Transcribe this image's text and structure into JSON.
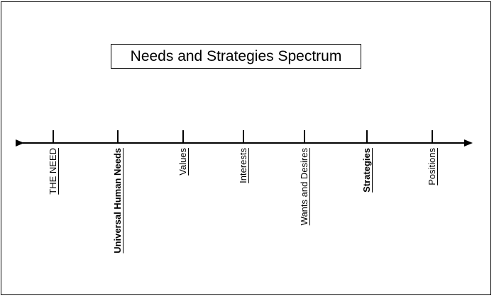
{
  "title": "Needs and Strategies Spectrum",
  "spectrum": {
    "points": [
      {
        "label": "THE NEED",
        "bold": false
      },
      {
        "label": "Universal Human Needs",
        "bold": true
      },
      {
        "label": "Values",
        "bold": false
      },
      {
        "label": "Interests",
        "bold": false
      },
      {
        "label": "Wants and Desires",
        "bold": false
      },
      {
        "label": "Strategies",
        "bold": true
      },
      {
        "label": "Positions",
        "bold": false
      }
    ]
  }
}
